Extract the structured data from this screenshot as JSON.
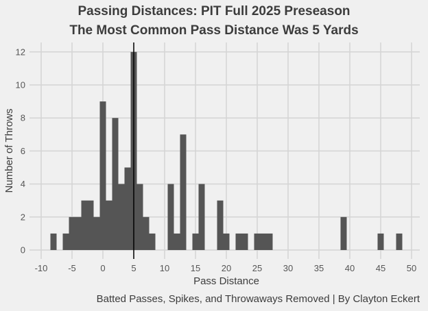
{
  "chart_data": {
    "type": "bar",
    "title": "Passing Distances: PIT Full 2025 Preseason",
    "subtitle": "The Most Common Pass Distance Was 5 Yards",
    "xlabel": "Pass Distance",
    "ylabel": "Number of Throws",
    "caption": "Batted Passes, Spikes, and Throwaways Removed | By Clayton Eckert",
    "xlim": [
      -10,
      50
    ],
    "ylim": [
      0,
      12
    ],
    "grid": true,
    "bin_width": 1,
    "x_ticks": [
      "-10",
      "-5",
      "0",
      "5",
      "10",
      "15",
      "20",
      "25",
      "30",
      "35",
      "40",
      "45",
      "50"
    ],
    "y_ticks": [
      "0",
      "2",
      "4",
      "6",
      "8",
      "10",
      "12"
    ],
    "reference_line_x": 5,
    "x": [
      -8,
      -6,
      -5,
      -4,
      -3,
      -2,
      -1,
      0,
      1,
      2,
      3,
      4,
      5,
      6,
      7,
      8,
      11,
      12,
      13,
      15,
      16,
      19,
      20,
      22,
      23,
      25,
      26,
      27,
      39,
      45,
      48
    ],
    "values": [
      1,
      1,
      2,
      2,
      3,
      3,
      2,
      9,
      3,
      8,
      4,
      5,
      12,
      4,
      2,
      1,
      4,
      1,
      7,
      1,
      4,
      3,
      1,
      1,
      1,
      1,
      1,
      1,
      2,
      1,
      1
    ],
    "bar_color": "#555555"
  }
}
